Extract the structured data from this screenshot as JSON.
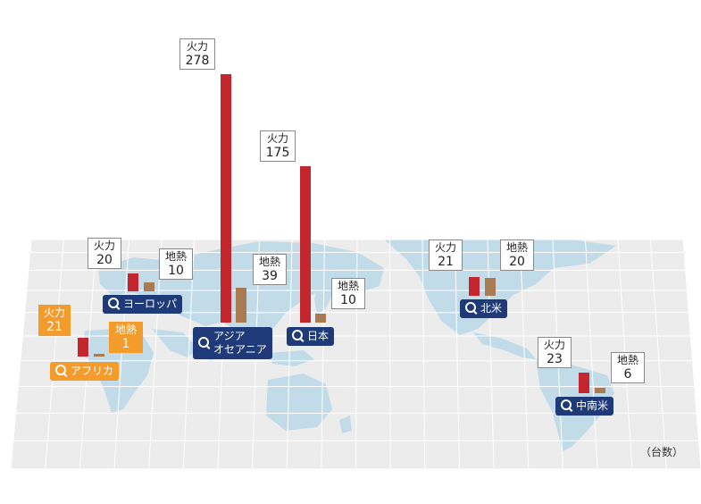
{
  "unit_label": "（台数）",
  "legend_terms": {
    "thermal": "火力",
    "geothermal": "地熱"
  },
  "colors": {
    "thermal_bar": "#c4262e",
    "geothermal_bar": "#a87b53",
    "region_tag": "#1e3a78",
    "africa_tag": "#f39b2b",
    "map_land": "#c2dbe9",
    "grid_line": "#ffffff"
  },
  "regions": [
    {
      "id": "europe",
      "name": "ヨーロッパ",
      "thermal": 20,
      "geothermal": 10
    },
    {
      "id": "africa",
      "name": "アフリカ",
      "thermal": 21,
      "geothermal": 1
    },
    {
      "id": "asia-oceania",
      "name_lines": [
        "アジア",
        "オセアニア"
      ],
      "thermal": 278,
      "geothermal": 39
    },
    {
      "id": "japan",
      "name": "日本",
      "thermal": 175,
      "geothermal": 10
    },
    {
      "id": "north-america",
      "name": "北米",
      "thermal": 21,
      "geothermal": 20
    },
    {
      "id": "latin-america",
      "name": "中南米",
      "thermal": 23,
      "geothermal": 6
    }
  ]
}
